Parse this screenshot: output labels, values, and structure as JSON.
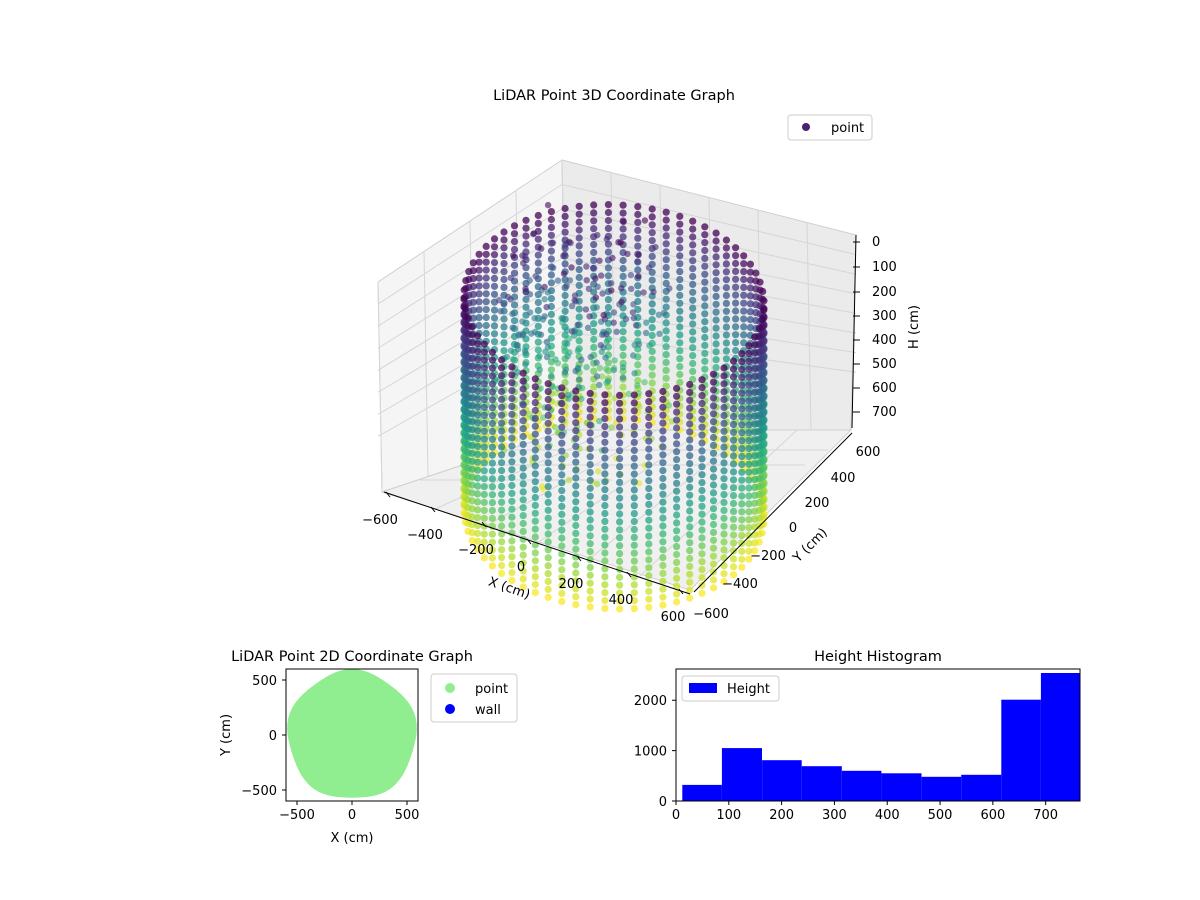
{
  "chart_data": [
    {
      "type": "scatter3d",
      "title": "LiDAR Point 3D Coordinate Graph",
      "xlabel": "X (cm)",
      "ylabel": "Y (cm)",
      "zlabel": "H (cm)",
      "xticks": [
        "−600",
        "−400",
        "−200",
        "0",
        "200",
        "400",
        "600"
      ],
      "yticks": [
        "−600",
        "−400",
        "−200",
        "0",
        "200",
        "400",
        "600"
      ],
      "zticks": [
        "0",
        "100",
        "200",
        "300",
        "400",
        "500",
        "600",
        "700"
      ],
      "xlim": [
        -600,
        600
      ],
      "ylim": [
        -600,
        600
      ],
      "zlim": [
        0,
        760
      ],
      "legend": {
        "label": "point",
        "color": "#482173",
        "placement": "top-right"
      },
      "colormap": "viridis",
      "grid": true,
      "description_data": {
        "ring_radius_cm": 560,
        "height_range_cm": [
          0,
          760
        ]
      }
    },
    {
      "type": "scatter",
      "title": "LiDAR Point 2D Coordinate Graph",
      "xlabel": "X (cm)",
      "ylabel": "Y (cm)",
      "xticks": [
        "−500",
        "0",
        "500"
      ],
      "yticks": [
        "500",
        "0",
        "−500"
      ],
      "xlim": [
        -600,
        600
      ],
      "ylim": [
        -600,
        600
      ],
      "series": [
        {
          "name": "point",
          "color": "#90ee90"
        },
        {
          "name": "wall",
          "color": "#0000ff"
        }
      ],
      "legend": "outside-right"
    },
    {
      "type": "bar",
      "title": "Height Histogram",
      "xlabel": "",
      "ylabel": "",
      "xticks": [
        "0",
        "100",
        "200",
        "300",
        "400",
        "500",
        "600",
        "700"
      ],
      "yticks": [
        "0",
        "1000",
        "2000"
      ],
      "xlim": [
        0,
        765
      ],
      "ylim": [
        0,
        2620
      ],
      "bins": [
        {
          "start": 12,
          "end": 87,
          "count": 320
        },
        {
          "start": 87,
          "end": 163,
          "count": 1050
        },
        {
          "start": 163,
          "end": 238,
          "count": 810
        },
        {
          "start": 238,
          "end": 314,
          "count": 690
        },
        {
          "start": 314,
          "end": 389,
          "count": 600
        },
        {
          "start": 389,
          "end": 465,
          "count": 550
        },
        {
          "start": 465,
          "end": 540,
          "count": 480
        },
        {
          "start": 540,
          "end": 616,
          "count": 520
        },
        {
          "start": 616,
          "end": 691,
          "count": 2010
        },
        {
          "start": 691,
          "end": 765,
          "count": 2540
        }
      ],
      "color": "#0000ff",
      "legend": {
        "label": "Height",
        "placement": "top-left"
      }
    }
  ]
}
